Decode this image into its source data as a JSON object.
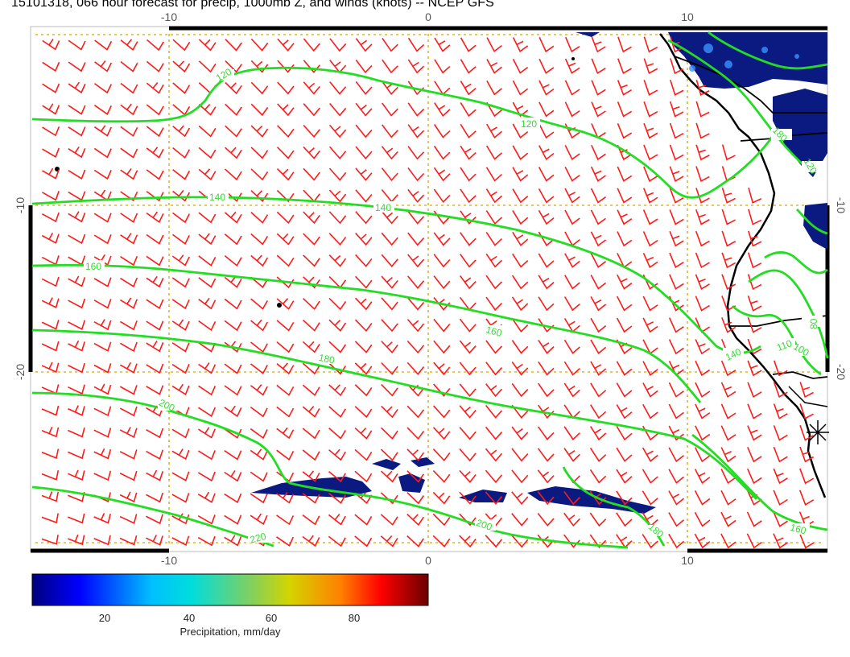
{
  "title": "15101318, 066 hour forecast for precip, 1000mb Z, and winds (knots) -- NCEP GFS",
  "axes": {
    "top_ticks": [
      "-10",
      "0",
      "10"
    ],
    "bottom_ticks": [
      "-10",
      "0",
      "10"
    ],
    "left_ticks": [
      "-10",
      "-20"
    ],
    "right_ticks": [
      "-10",
      "-20"
    ]
  },
  "contour_labels": [
    "120",
    "120",
    "140",
    "140",
    "160",
    "160",
    "180",
    "180",
    "140",
    "200",
    "200",
    "220",
    "180",
    "160",
    "110",
    "80",
    "100",
    "120"
  ],
  "colorbar": {
    "ticks": [
      "20",
      "40",
      "60",
      "80"
    ],
    "label": "Precipitation, mm/day"
  },
  "colors": {
    "barb": "#ff0000",
    "contour": "#22dd22",
    "grid": "#d4a800",
    "coast": "#000000",
    "precip": "#0a1a80"
  }
}
